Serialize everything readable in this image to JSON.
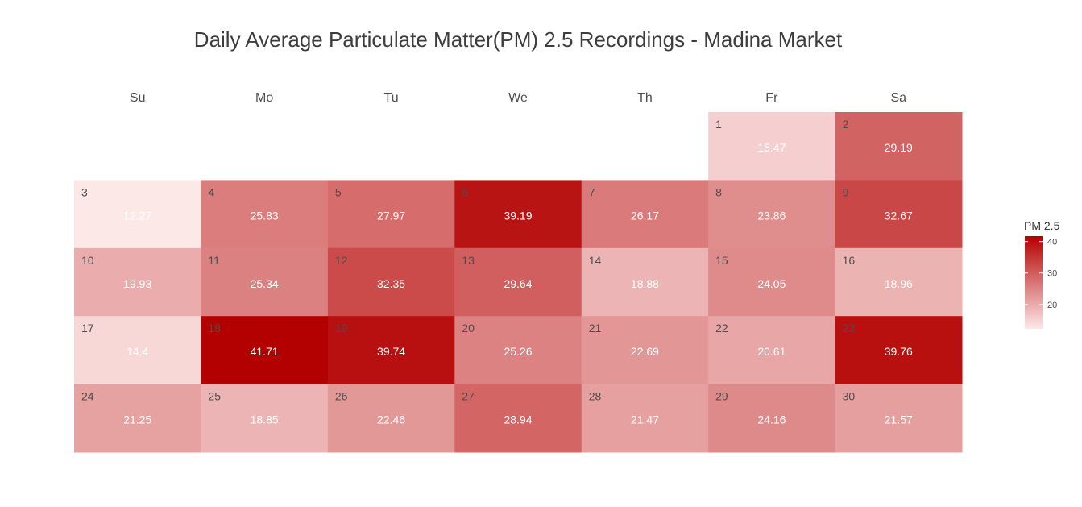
{
  "chart_data": {
    "type": "heatmap",
    "title": "Daily Average Particulate Matter(PM) 2.5 Recordings - Madina Market",
    "weekdays": [
      "Su",
      "Mo",
      "Tu",
      "We",
      "Th",
      "Fr",
      "Sa"
    ],
    "first_weekday_index": 5,
    "days": [
      {
        "day": "1",
        "value": 15.47
      },
      {
        "day": "2",
        "value": 29.19
      },
      {
        "day": "3",
        "value": 12.27
      },
      {
        "day": "4",
        "value": 25.83
      },
      {
        "day": "5",
        "value": 27.97
      },
      {
        "day": "6",
        "value": 39.19
      },
      {
        "day": "7",
        "value": 26.17
      },
      {
        "day": "8",
        "value": 23.86
      },
      {
        "day": "9",
        "value": 32.67
      },
      {
        "day": "10",
        "value": 19.93
      },
      {
        "day": "11",
        "value": 25.34
      },
      {
        "day": "12",
        "value": 32.35
      },
      {
        "day": "13",
        "value": 29.64
      },
      {
        "day": "14",
        "value": 18.88
      },
      {
        "day": "15",
        "value": 24.05
      },
      {
        "day": "16",
        "value": 18.96
      },
      {
        "day": "17",
        "value": 14.4
      },
      {
        "day": "18",
        "value": 41.71
      },
      {
        "day": "19",
        "value": 39.74
      },
      {
        "day": "20",
        "value": 25.26
      },
      {
        "day": "21",
        "value": 22.69
      },
      {
        "day": "22",
        "value": 20.61
      },
      {
        "day": "23",
        "value": 39.76
      },
      {
        "day": "24",
        "value": 21.25
      },
      {
        "day": "25",
        "value": 18.85
      },
      {
        "day": "26",
        "value": 22.46
      },
      {
        "day": "27",
        "value": 28.94
      },
      {
        "day": "28",
        "value": 21.47
      },
      {
        "day": "29",
        "value": 24.16
      },
      {
        "day": "30",
        "value": 21.57
      }
    ],
    "legend": {
      "title": "PM 2.5",
      "ticks": [
        "20",
        "30",
        "40"
      ],
      "tick_values": [
        20,
        30,
        40
      ],
      "range": [
        12.27,
        41.71
      ],
      "position": "right"
    },
    "colors": {
      "low": "#fde8e8",
      "high": "#b30000"
    }
  }
}
